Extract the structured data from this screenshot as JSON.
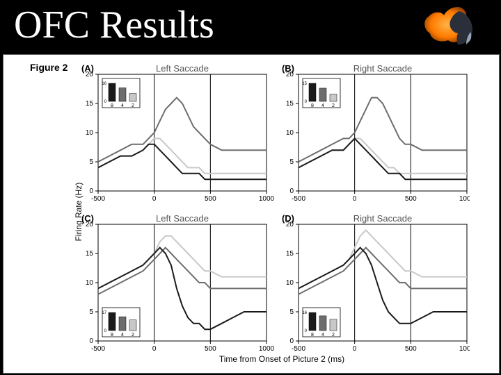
{
  "title": "OFC Results",
  "figure_label": "Figure 2",
  "y_axis_label": "Firing Rate (Hz)",
  "x_axis_label": "Time from Onset of Picture 2 (ms)",
  "global": {
    "xlim": [
      -500,
      1000
    ],
    "xticks": [
      -500,
      0,
      500,
      1000
    ],
    "line_width": 2.0,
    "axis_color": "#000000",
    "grid": false,
    "background_color": "#ffffff",
    "title_fontsize": 13,
    "tick_fontsize": 10,
    "axis_label_fontsize": 12,
    "vlines": [
      0,
      500
    ],
    "vline_color": "#000000",
    "inset_categories": [
      "8",
      "4",
      "2"
    ],
    "inset_colors": [
      "#1a1a1a",
      "#6d6d6d",
      "#c8c8c8"
    ],
    "series_colors": {
      "8": "#1a1a1a",
      "4": "#6d6d6d",
      "2": "#c8c8c8"
    }
  },
  "panels": [
    {
      "id": "A",
      "title": "Left Saccade",
      "ylim": [
        0,
        20
      ],
      "yticks": [
        0,
        5,
        10,
        15,
        20
      ],
      "inset_pos": "top-left",
      "inset_values": [
        16,
        12,
        7
      ],
      "series": {
        "x": [
          -500,
          -400,
          -300,
          -200,
          -100,
          -50,
          0,
          50,
          100,
          150,
          200,
          250,
          300,
          350,
          400,
          450,
          500,
          600,
          700,
          800,
          900,
          1000
        ],
        "8": [
          4,
          5,
          6,
          6,
          7,
          8,
          8,
          7,
          6,
          5,
          4,
          3,
          3,
          3,
          3,
          2,
          2,
          2,
          2,
          2,
          2,
          2
        ],
        "4": [
          5,
          6,
          7,
          8,
          8,
          9,
          10,
          12,
          14,
          15,
          16,
          15,
          13,
          11,
          10,
          9,
          8,
          7,
          7,
          7,
          7,
          7
        ],
        "2": [
          4,
          5,
          6,
          6,
          7,
          8,
          9,
          9,
          8,
          7,
          6,
          5,
          4,
          4,
          4,
          3,
          3,
          3,
          3,
          3,
          3,
          3
        ]
      }
    },
    {
      "id": "B",
      "title": "Right Saccade",
      "ylim": [
        0,
        20
      ],
      "yticks": [
        0,
        5,
        10,
        15,
        20
      ],
      "inset_pos": "top-left",
      "inset_values": [
        15,
        11,
        6
      ],
      "series": {
        "x": [
          -500,
          -400,
          -300,
          -200,
          -100,
          -50,
          0,
          50,
          100,
          150,
          200,
          250,
          300,
          350,
          400,
          450,
          500,
          600,
          700,
          800,
          900,
          1000
        ],
        "8": [
          4,
          5,
          6,
          7,
          7,
          8,
          9,
          8,
          7,
          6,
          5,
          4,
          3,
          3,
          3,
          2,
          2,
          2,
          2,
          2,
          2,
          2
        ],
        "4": [
          5,
          6,
          7,
          8,
          9,
          9,
          10,
          12,
          14,
          16,
          16,
          15,
          13,
          11,
          9,
          8,
          8,
          7,
          7,
          7,
          7,
          7
        ],
        "2": [
          4,
          5,
          6,
          7,
          7,
          8,
          9,
          9,
          8,
          7,
          6,
          5,
          4,
          4,
          3,
          3,
          3,
          3,
          3,
          3,
          3,
          3
        ]
      }
    },
    {
      "id": "C",
      "title": "Left Saccade",
      "ylim": [
        0,
        20
      ],
      "yticks": [
        0,
        5,
        10,
        15,
        20
      ],
      "inset_pos": "bottom-left",
      "inset_values": [
        17,
        13,
        10
      ],
      "series": {
        "x": [
          -500,
          -400,
          -300,
          -200,
          -100,
          -50,
          0,
          50,
          100,
          150,
          200,
          250,
          300,
          350,
          400,
          450,
          500,
          600,
          700,
          800,
          900,
          1000
        ],
        "8": [
          9,
          10,
          11,
          12,
          13,
          14,
          15,
          16,
          15,
          13,
          9,
          6,
          4,
          3,
          3,
          2,
          2,
          3,
          4,
          5,
          5,
          5
        ],
        "4": [
          8,
          9,
          10,
          11,
          12,
          13,
          14,
          15,
          16,
          15,
          14,
          13,
          12,
          11,
          10,
          10,
          9,
          9,
          9,
          9,
          9,
          9
        ],
        "2": [
          9,
          10,
          11,
          12,
          13,
          14,
          15,
          17,
          18,
          18,
          17,
          16,
          15,
          14,
          13,
          12,
          12,
          11,
          11,
          11,
          11,
          11
        ]
      }
    },
    {
      "id": "D",
      "title": "Right Saccade",
      "ylim": [
        0,
        20
      ],
      "yticks": [
        0,
        5,
        10,
        15,
        20
      ],
      "inset_pos": "bottom-left",
      "inset_values": [
        16,
        13,
        10
      ],
      "series": {
        "x": [
          -500,
          -400,
          -300,
          -200,
          -100,
          -50,
          0,
          50,
          100,
          150,
          200,
          250,
          300,
          350,
          400,
          450,
          500,
          600,
          700,
          800,
          900,
          1000
        ],
        "8": [
          9,
          10,
          11,
          12,
          13,
          14,
          15,
          16,
          15,
          13,
          10,
          7,
          5,
          4,
          3,
          3,
          3,
          4,
          5,
          5,
          5,
          5
        ],
        "4": [
          8,
          9,
          10,
          11,
          12,
          13,
          14,
          15,
          16,
          15,
          14,
          13,
          12,
          11,
          10,
          10,
          9,
          9,
          9,
          9,
          9,
          9
        ],
        "2": [
          9,
          10,
          11,
          12,
          13,
          14,
          16,
          18,
          19,
          18,
          17,
          16,
          15,
          14,
          13,
          12,
          12,
          11,
          11,
          11,
          11,
          11
        ]
      }
    }
  ]
}
